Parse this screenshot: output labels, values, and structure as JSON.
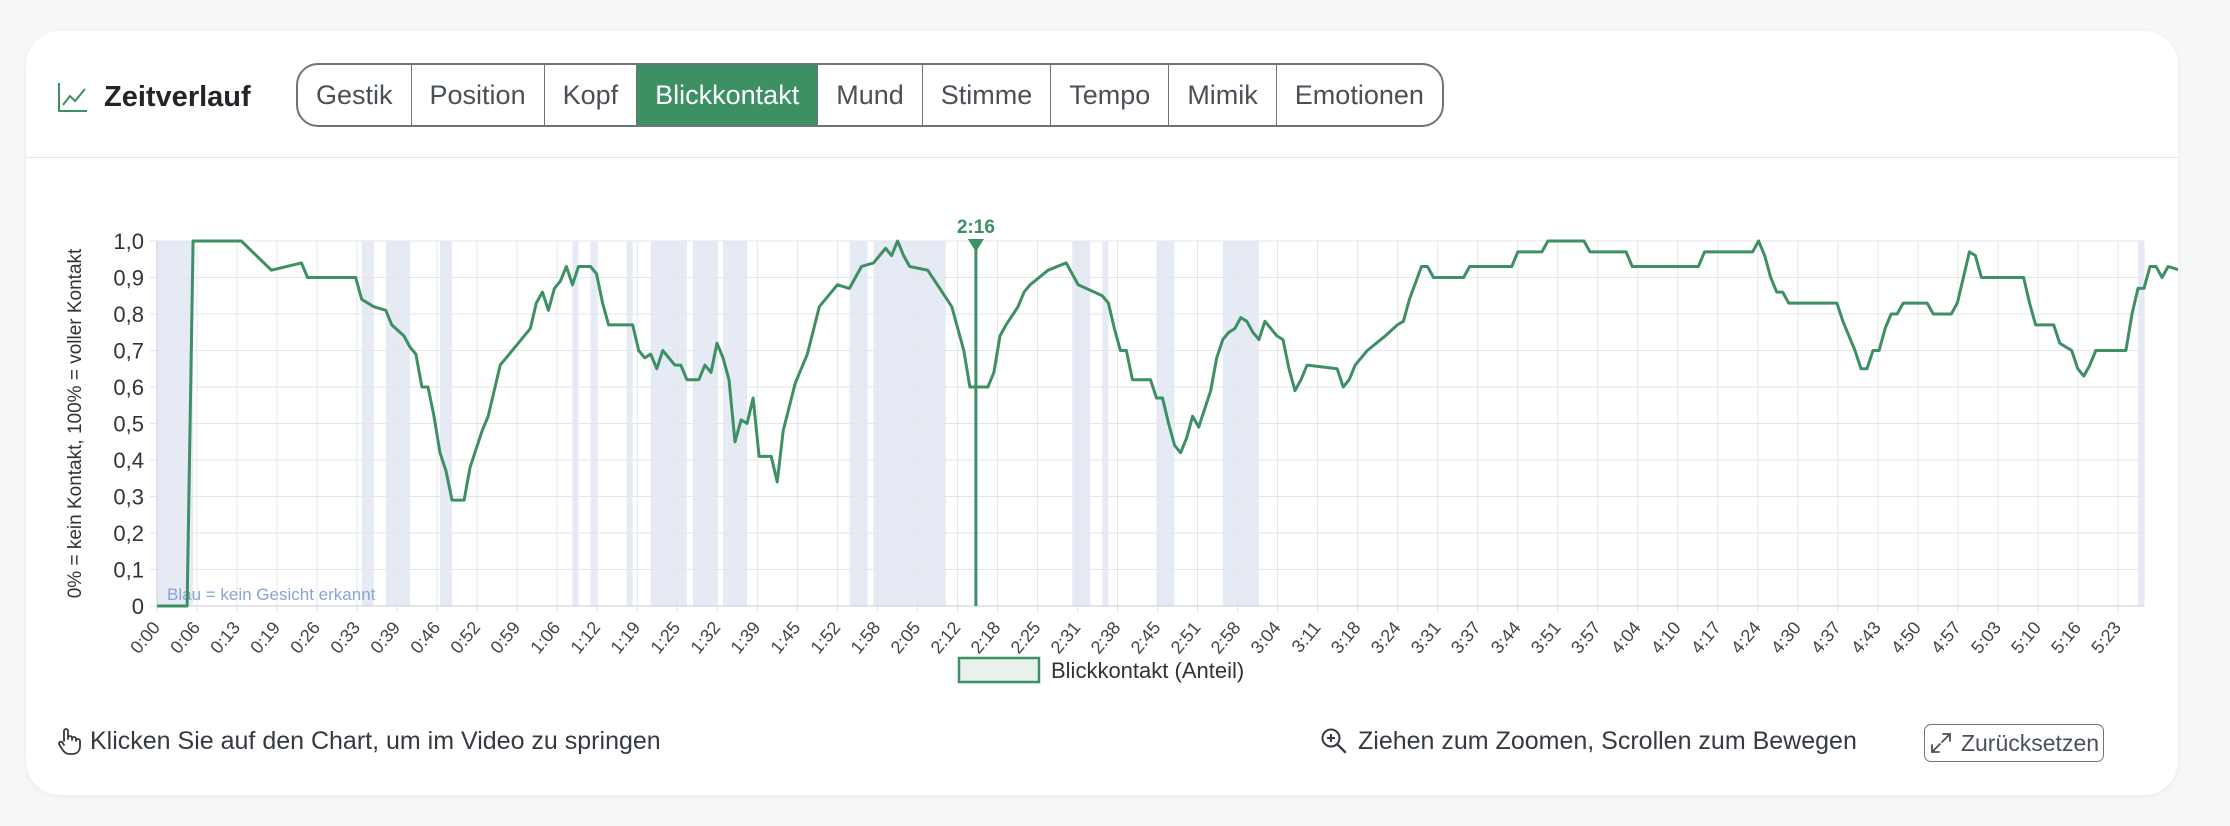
{
  "header": {
    "title": "Zeitverlauf",
    "tabs": [
      {
        "label": "Gestik",
        "active": false
      },
      {
        "label": "Position",
        "active": false
      },
      {
        "label": "Kopf",
        "active": false
      },
      {
        "label": "Blickkontakt",
        "active": true
      },
      {
        "label": "Mund",
        "active": false
      },
      {
        "label": "Stimme",
        "active": false
      },
      {
        "label": "Tempo",
        "active": false
      },
      {
        "label": "Mimik",
        "active": false
      },
      {
        "label": "Emotionen",
        "active": false
      }
    ]
  },
  "colors": {
    "accent": "#3d8f64",
    "no_face": "#e6eaf5",
    "grid": "#e4e6ea"
  },
  "chart_data": {
    "type": "line",
    "ylabel": "0% = kein Kontakt, 100% = voller Kontakt",
    "ylim": [
      0,
      1
    ],
    "xlim_seconds": [
      0,
      330
    ],
    "y_ticks": [
      "0",
      "0,1",
      "0,2",
      "0,3",
      "0,4",
      "0,5",
      "0,6",
      "0,7",
      "0,8",
      "0,9",
      "1,0"
    ],
    "x_ticks": [
      "0:00",
      "0:06",
      "0:13",
      "0:19",
      "0:26",
      "0:33",
      "0:39",
      "0:46",
      "0:52",
      "0:59",
      "1:06",
      "1:12",
      "1:19",
      "1:25",
      "1:32",
      "1:39",
      "1:45",
      "1:52",
      "1:58",
      "2:05",
      "2:12",
      "2:18",
      "2:25",
      "2:31",
      "2:38",
      "2:45",
      "2:51",
      "2:58",
      "3:04",
      "3:11",
      "3:18",
      "3:24",
      "3:31",
      "3:37",
      "3:44",
      "3:51",
      "3:57",
      "4:04",
      "4:10",
      "4:17",
      "4:24",
      "4:30",
      "4:37",
      "4:43",
      "4:50",
      "4:57",
      "5:03",
      "5:10",
      "5:16",
      "5:23"
    ],
    "legend": "Blickkontakt (Anteil)",
    "legend_position": "bottom",
    "grid": true,
    "cursor_label": "2:16",
    "cursor_seconds": 136,
    "no_face_note": "Blau = kein Gesicht erkannt",
    "no_face_ranges_seconds": [
      [
        0,
        6
      ],
      [
        34,
        36
      ],
      [
        38,
        42
      ],
      [
        47,
        49
      ],
      [
        69,
        70
      ],
      [
        72,
        73
      ],
      [
        78,
        79
      ],
      [
        82,
        88
      ],
      [
        89,
        93
      ],
      [
        94,
        98
      ],
      [
        115,
        118
      ],
      [
        119,
        131
      ],
      [
        152,
        155
      ],
      [
        157,
        158
      ],
      [
        166,
        169
      ],
      [
        177,
        183
      ],
      [
        329,
        330
      ]
    ],
    "series": [
      {
        "name": "Blickkontakt (Anteil)",
        "points": [
          [
            0,
            0
          ],
          [
            5,
            0
          ],
          [
            6,
            1
          ],
          [
            14,
            1
          ],
          [
            19,
            0.92
          ],
          [
            24,
            0.94
          ],
          [
            25,
            0.9
          ],
          [
            33,
            0.9
          ],
          [
            34,
            0.84
          ],
          [
            36,
            0.82
          ],
          [
            38,
            0.81
          ],
          [
            39,
            0.77
          ],
          [
            41,
            0.74
          ],
          [
            42,
            0.71
          ],
          [
            43,
            0.69
          ],
          [
            44,
            0.6
          ],
          [
            45,
            0.6
          ],
          [
            46,
            0.52
          ],
          [
            47,
            0.42
          ],
          [
            48,
            0.37
          ],
          [
            49,
            0.29
          ],
          [
            51,
            0.29
          ],
          [
            52,
            0.38
          ],
          [
            54,
            0.48
          ],
          [
            55,
            0.52
          ],
          [
            57,
            0.66
          ],
          [
            60,
            0.72
          ],
          [
            62,
            0.76
          ],
          [
            63,
            0.83
          ],
          [
            64,
            0.86
          ],
          [
            65,
            0.81
          ],
          [
            66,
            0.87
          ],
          [
            67,
            0.89
          ],
          [
            68,
            0.93
          ],
          [
            69,
            0.88
          ],
          [
            70,
            0.93
          ],
          [
            72,
            0.93
          ],
          [
            73,
            0.91
          ],
          [
            74,
            0.83
          ],
          [
            75,
            0.77
          ],
          [
            79,
            0.77
          ],
          [
            80,
            0.7
          ],
          [
            81,
            0.68
          ],
          [
            82,
            0.69
          ],
          [
            83,
            0.65
          ],
          [
            84,
            0.7
          ],
          [
            86,
            0.66
          ],
          [
            87,
            0.66
          ],
          [
            88,
            0.62
          ],
          [
            90,
            0.62
          ],
          [
            91,
            0.66
          ],
          [
            92,
            0.64
          ],
          [
            93,
            0.72
          ],
          [
            94,
            0.68
          ],
          [
            95,
            0.62
          ],
          [
            96,
            0.45
          ],
          [
            97,
            0.51
          ],
          [
            98,
            0.5
          ],
          [
            99,
            0.57
          ],
          [
            100,
            0.41
          ],
          [
            102,
            0.41
          ],
          [
            103,
            0.34
          ],
          [
            104,
            0.48
          ],
          [
            106,
            0.61
          ],
          [
            108,
            0.69
          ],
          [
            110,
            0.82
          ],
          [
            113,
            0.88
          ],
          [
            115,
            0.87
          ],
          [
            117,
            0.93
          ],
          [
            119,
            0.94
          ],
          [
            121,
            0.98
          ],
          [
            122,
            0.96
          ],
          [
            123,
            1.0
          ],
          [
            124,
            0.96
          ],
          [
            125,
            0.93
          ],
          [
            128,
            0.92
          ],
          [
            130,
            0.87
          ],
          [
            132,
            0.82
          ],
          [
            134,
            0.7
          ],
          [
            135,
            0.6
          ],
          [
            138,
            0.6
          ],
          [
            139,
            0.64
          ],
          [
            140,
            0.74
          ],
          [
            141,
            0.77
          ],
          [
            143,
            0.82
          ],
          [
            144,
            0.86
          ],
          [
            145,
            0.88
          ],
          [
            148,
            0.92
          ],
          [
            151,
            0.94
          ],
          [
            153,
            0.88
          ],
          [
            157,
            0.85
          ],
          [
            158,
            0.83
          ],
          [
            159,
            0.76
          ],
          [
            160,
            0.7
          ],
          [
            161,
            0.7
          ],
          [
            162,
            0.62
          ],
          [
            165,
            0.62
          ],
          [
            166,
            0.57
          ],
          [
            167,
            0.57
          ],
          [
            168,
            0.5
          ],
          [
            169,
            0.44
          ],
          [
            170,
            0.42
          ],
          [
            171,
            0.46
          ],
          [
            172,
            0.52
          ],
          [
            173,
            0.49
          ],
          [
            174,
            0.54
          ],
          [
            175,
            0.59
          ],
          [
            176,
            0.68
          ],
          [
            177,
            0.73
          ],
          [
            178,
            0.75
          ],
          [
            179,
            0.76
          ],
          [
            180,
            0.79
          ],
          [
            181,
            0.78
          ],
          [
            182,
            0.75
          ],
          [
            183,
            0.73
          ],
          [
            184,
            0.78
          ],
          [
            185,
            0.76
          ],
          [
            186,
            0.74
          ],
          [
            187,
            0.73
          ],
          [
            188,
            0.65
          ],
          [
            189,
            0.59
          ],
          [
            190,
            0.62
          ],
          [
            191,
            0.66
          ],
          [
            196,
            0.65
          ],
          [
            197,
            0.6
          ],
          [
            198,
            0.62
          ],
          [
            199,
            0.66
          ],
          [
            201,
            0.7
          ],
          [
            204,
            0.74
          ],
          [
            206,
            0.77
          ],
          [
            207,
            0.78
          ],
          [
            208,
            0.84
          ],
          [
            210,
            0.93
          ],
          [
            211,
            0.93
          ],
          [
            212,
            0.9
          ],
          [
            217,
            0.9
          ],
          [
            218,
            0.93
          ],
          [
            225,
            0.93
          ],
          [
            226,
            0.97
          ],
          [
            230,
            0.97
          ],
          [
            231,
            1.0
          ],
          [
            237,
            1.0
          ],
          [
            238,
            0.97
          ],
          [
            244,
            0.97
          ],
          [
            245,
            0.93
          ],
          [
            256,
            0.93
          ],
          [
            257,
            0.97
          ],
          [
            265,
            0.97
          ],
          [
            266,
            1.0
          ],
          [
            267,
            0.96
          ],
          [
            268,
            0.9
          ],
          [
            269,
            0.86
          ],
          [
            270,
            0.86
          ],
          [
            271,
            0.83
          ],
          [
            279,
            0.83
          ],
          [
            280,
            0.78
          ],
          [
            282,
            0.7
          ],
          [
            283,
            0.65
          ],
          [
            284,
            0.65
          ],
          [
            285,
            0.7
          ],
          [
            286,
            0.7
          ],
          [
            287,
            0.76
          ],
          [
            288,
            0.8
          ],
          [
            289,
            0.8
          ],
          [
            290,
            0.83
          ],
          [
            294,
            0.83
          ],
          [
            295,
            0.8
          ],
          [
            298,
            0.8
          ],
          [
            299,
            0.83
          ],
          [
            300,
            0.9
          ],
          [
            301,
            0.97
          ],
          [
            302,
            0.96
          ],
          [
            303,
            0.9
          ],
          [
            310,
            0.9
          ],
          [
            311,
            0.83
          ],
          [
            312,
            0.77
          ],
          [
            315,
            0.77
          ],
          [
            316,
            0.72
          ],
          [
            318,
            0.7
          ],
          [
            319,
            0.65
          ],
          [
            320,
            0.63
          ],
          [
            321,
            0.66
          ],
          [
            322,
            0.7
          ],
          [
            327,
            0.7
          ],
          [
            328,
            0.8
          ],
          [
            329,
            0.87
          ],
          [
            330,
            0.87
          ],
          [
            331,
            0.93
          ],
          [
            332,
            0.93
          ],
          [
            333,
            0.9
          ],
          [
            334,
            0.93
          ],
          [
            336,
            0.92
          ]
        ]
      }
    ]
  },
  "footer": {
    "hint": "Klicken Sie auf den Chart, um im Video zu springen",
    "zoom_hint": "Ziehen zum Zoomen, Scrollen zum Bewegen",
    "reset_label": "Zurücksetzen"
  }
}
